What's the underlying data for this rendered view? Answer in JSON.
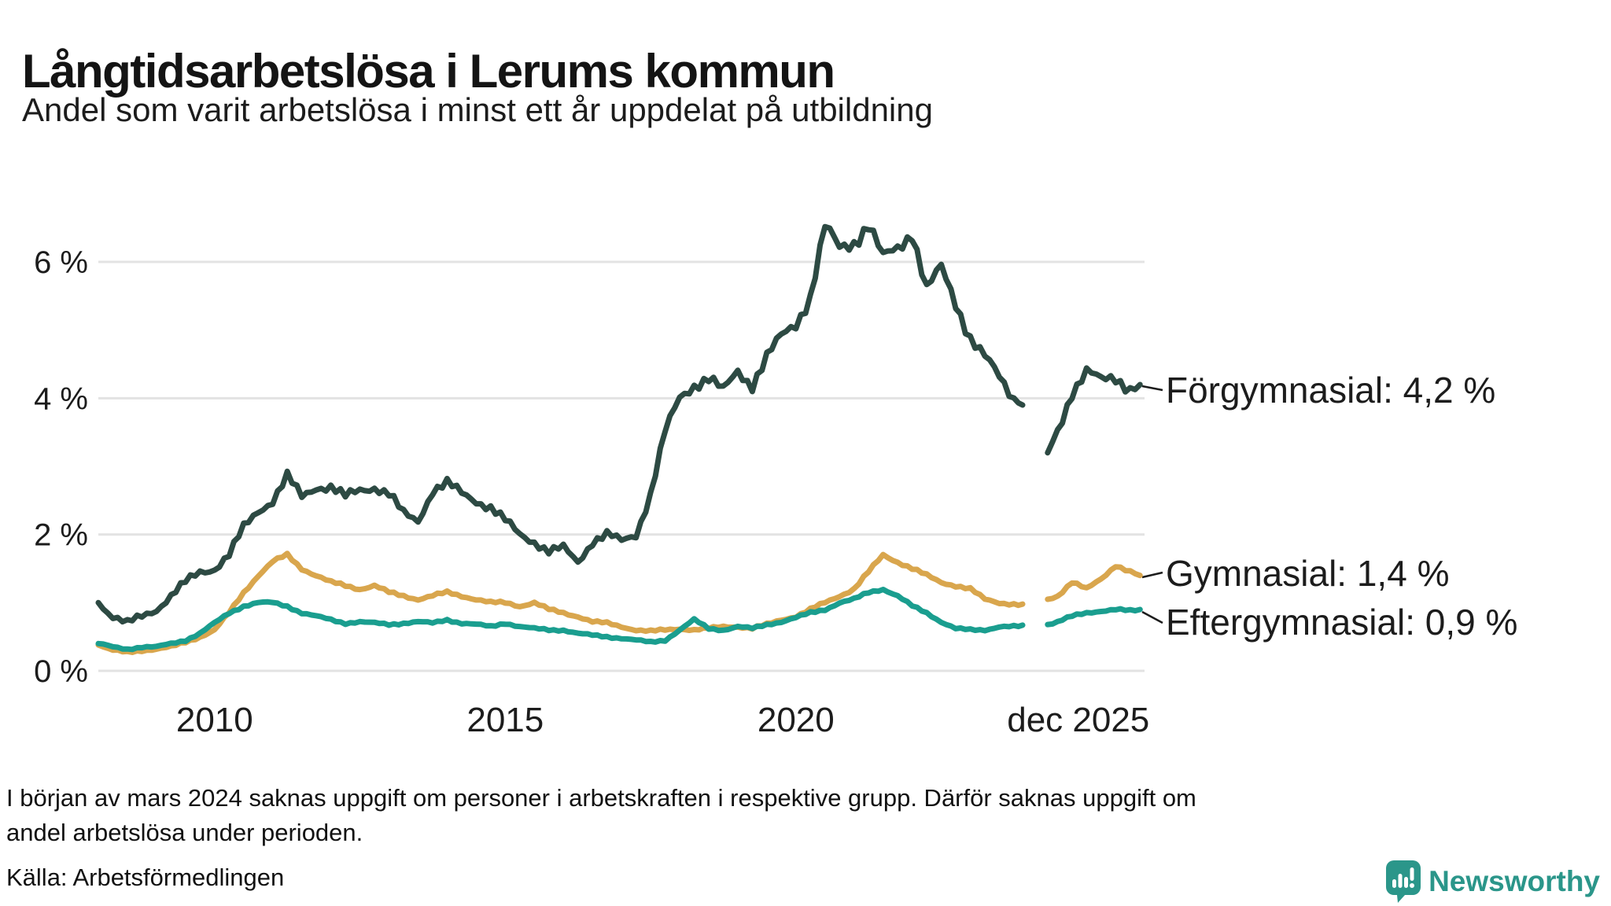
{
  "header": {
    "title": "Långtidsarbetslösa i Lerums kommun",
    "subtitle": "Andel som varit arbetslösa i minst ett år uppdelat på utbildning"
  },
  "chart_data": {
    "type": "line",
    "title": "Långtidsarbetslösa i Lerums kommun",
    "subtitle": "Andel som varit arbetslösa i minst ett år uppdelat på utbildning",
    "x_unit": "decimal_year",
    "xlim": [
      2008,
      2026
    ],
    "ylim": [
      0,
      7
    ],
    "grid": true,
    "legend_position": "end-of-line-labels-right",
    "yticks": [
      {
        "value": 0,
        "label": "0 %"
      },
      {
        "value": 2,
        "label": "2 %"
      },
      {
        "value": 4,
        "label": "4 %"
      },
      {
        "value": 6,
        "label": "6 %"
      }
    ],
    "xticks": [
      {
        "value": 2010,
        "label": "2010",
        "align": "middle"
      },
      {
        "value": 2015,
        "label": "2015",
        "align": "middle"
      },
      {
        "value": 2020,
        "label": "2020",
        "align": "middle"
      },
      {
        "value": 2025.92,
        "label": "dec 2025",
        "align": "end"
      }
    ],
    "data_gap_note": "values are null in early 2024 where data is missing",
    "x": [
      2008,
      2008.25,
      2008.5,
      2008.75,
      2009,
      2009.25,
      2009.5,
      2009.75,
      2010,
      2010.25,
      2010.5,
      2010.75,
      2011,
      2011.25,
      2011.5,
      2011.75,
      2012,
      2012.25,
      2012.5,
      2012.75,
      2013,
      2013.25,
      2013.5,
      2013.75,
      2014,
      2014.25,
      2014.5,
      2014.75,
      2015,
      2015.25,
      2015.5,
      2015.75,
      2016,
      2016.25,
      2016.5,
      2016.75,
      2017,
      2017.25,
      2017.5,
      2017.75,
      2018,
      2018.25,
      2018.5,
      2018.75,
      2019,
      2019.25,
      2019.5,
      2019.75,
      2020,
      2020.25,
      2020.5,
      2020.75,
      2021,
      2021.25,
      2021.5,
      2021.75,
      2022,
      2022.25,
      2022.5,
      2022.75,
      2023,
      2023.25,
      2023.5,
      2023.75,
      2023.9,
      2024.1,
      2024.33,
      2024.5,
      2024.75,
      2025,
      2025.25,
      2025.5,
      2025.75,
      2025.92
    ],
    "series": [
      {
        "id": "forgymnasial",
        "name": "Förgymnasial",
        "color": "#2d4a43",
        "end_value_label": "4,2 %",
        "values": [
          1.0,
          0.8,
          0.7,
          0.8,
          0.9,
          1.1,
          1.3,
          1.45,
          1.5,
          1.7,
          2.1,
          2.35,
          2.5,
          2.85,
          2.55,
          2.7,
          2.7,
          2.55,
          2.65,
          2.7,
          2.6,
          2.3,
          2.2,
          2.65,
          2.75,
          2.6,
          2.5,
          2.4,
          2.2,
          2.0,
          1.9,
          1.75,
          1.8,
          1.6,
          1.9,
          2.0,
          1.9,
          2.0,
          2.6,
          3.5,
          4.0,
          4.2,
          4.3,
          4.1,
          4.4,
          4.2,
          4.6,
          4.9,
          5.1,
          5.5,
          6.5,
          6.2,
          6.3,
          6.55,
          6.05,
          6.2,
          6.45,
          5.6,
          5.9,
          5.4,
          4.9,
          4.6,
          4.3,
          4.0,
          3.9,
          null,
          3.2,
          3.5,
          4.1,
          4.4,
          4.25,
          4.3,
          4.15,
          4.2
        ]
      },
      {
        "id": "gymnasial",
        "name": "Gymnasial",
        "color": "#d9a64d",
        "end_value_label": "1,4 %",
        "values": [
          0.38,
          0.3,
          0.27,
          0.3,
          0.32,
          0.35,
          0.42,
          0.5,
          0.6,
          0.85,
          1.15,
          1.4,
          1.6,
          1.7,
          1.5,
          1.4,
          1.3,
          1.25,
          1.2,
          1.25,
          1.15,
          1.1,
          1.05,
          1.1,
          1.15,
          1.1,
          1.05,
          1.0,
          1.0,
          0.95,
          1.0,
          0.9,
          0.85,
          0.8,
          0.72,
          0.7,
          0.65,
          0.6,
          0.58,
          0.6,
          0.62,
          0.6,
          0.62,
          0.65,
          0.65,
          0.62,
          0.68,
          0.75,
          0.8,
          0.9,
          1.0,
          1.1,
          1.2,
          1.45,
          1.7,
          1.6,
          1.5,
          1.4,
          1.3,
          1.25,
          1.2,
          1.05,
          1.0,
          0.98,
          0.98,
          null,
          1.05,
          1.1,
          1.3,
          1.2,
          1.35,
          1.55,
          1.45,
          1.4
        ]
      },
      {
        "id": "eftergymnasial",
        "name": "Eftergymnasial",
        "color": "#1a9e8f",
        "end_value_label": "0,9 %",
        "values": [
          0.4,
          0.35,
          0.32,
          0.35,
          0.35,
          0.4,
          0.45,
          0.55,
          0.7,
          0.85,
          0.95,
          1.0,
          1.0,
          0.95,
          0.85,
          0.8,
          0.75,
          0.7,
          0.72,
          0.7,
          0.68,
          0.7,
          0.72,
          0.7,
          0.75,
          0.7,
          0.68,
          0.65,
          0.7,
          0.65,
          0.62,
          0.6,
          0.6,
          0.55,
          0.52,
          0.5,
          0.48,
          0.45,
          0.42,
          0.45,
          0.6,
          0.75,
          0.62,
          0.6,
          0.65,
          0.62,
          0.68,
          0.72,
          0.78,
          0.85,
          0.9,
          1.0,
          1.05,
          1.15,
          1.2,
          1.1,
          0.95,
          0.85,
          0.72,
          0.62,
          0.6,
          0.6,
          0.65,
          0.65,
          0.67,
          null,
          0.68,
          0.72,
          0.8,
          0.85,
          0.88,
          0.9,
          0.88,
          0.9
        ]
      }
    ],
    "end_labels": [
      {
        "text": "Förgymnasial: 4,2 %"
      },
      {
        "text": "Gymnasial: 1,4 %"
      },
      {
        "text": "Eftergymnasial: 0,9 %"
      }
    ]
  },
  "footnote": {
    "line1": "I början av mars 2024 saknas uppgift om personer i arbetskraften i respektive grupp. Därför saknas uppgift om",
    "line2": "andel arbetslösa under perioden."
  },
  "source": {
    "text": "Källa: Arbetsförmedlingen"
  },
  "branding": {
    "name": "Newsworthy",
    "color": "#2b968a"
  }
}
